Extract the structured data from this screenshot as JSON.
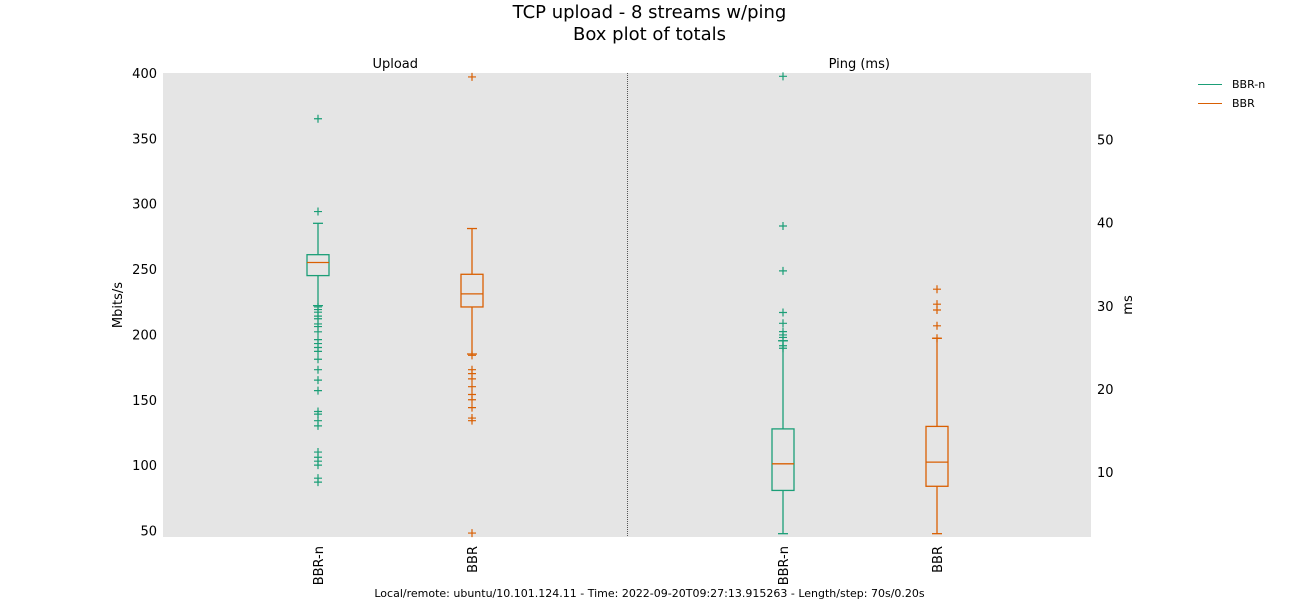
{
  "colors": {
    "series_a": "#1b9e77",
    "series_b": "#d95f02",
    "plot_bg": "#e5e5e5"
  },
  "chart_data": {
    "type": "box",
    "title": "TCP upload - 8 streams w/ping",
    "subtitle": "Box plot of totals",
    "legend": {
      "placement": "top-right",
      "entries": [
        "BBR-n",
        "BBR"
      ]
    },
    "footer": "Local/remote: ubuntu/10.101.124.11 - Time: 2022-09-20T09:27:13.915263 - Length/step: 70s/0.20s",
    "grid": false,
    "panels": [
      {
        "title": "Upload",
        "ylabel": "Mbits/s",
        "y_axis_side": "left",
        "ylim": [
          45,
          400
        ],
        "yticks": [
          50,
          100,
          150,
          200,
          250,
          300,
          350,
          400
        ],
        "categories": [
          "BBR-n",
          "BBR"
        ],
        "boxes": [
          {
            "name": "BBR-n",
            "color": "#1b9e77",
            "whisker_low": 222,
            "q1": 245,
            "median": 255,
            "q3": 261,
            "whisker_high": 285,
            "outliers": [
              365,
              294,
              221,
              219,
              217,
              214,
              212,
              208,
              206,
              202,
              196,
              193,
              190,
              187,
              181,
              173,
              165,
              157,
              141,
              139,
              134,
              130,
              110,
              106,
              103,
              100,
              90,
              87
            ]
          },
          {
            "name": "BBR",
            "color": "#d95f02",
            "whisker_low": 185,
            "q1": 221,
            "median": 231,
            "q3": 246,
            "whisker_high": 281,
            "outliers": [
              397,
              184,
              173,
              170,
              166,
              160,
              154,
              150,
              144,
              136,
              134,
              48
            ]
          }
        ]
      },
      {
        "title": "Ping (ms)",
        "ylabel": "ms",
        "y_axis_side": "right",
        "ylim": [
          2.2,
          58
        ],
        "yticks": [
          10,
          20,
          30,
          40,
          50
        ],
        "categories": [
          "BBR-n",
          "BBR"
        ],
        "boxes": [
          {
            "name": "BBR-n",
            "color": "#1b9e77",
            "whisker_low": 2.6,
            "q1": 7.8,
            "median": 11.0,
            "q3": 15.2,
            "whisker_high": 25.8,
            "outliers": [
              57.6,
              39.6,
              34.2,
              29.2,
              27.9,
              26.9,
              26.5,
              26.2,
              25.8,
              25.2,
              24.9
            ]
          },
          {
            "name": "BBR",
            "color": "#d95f02",
            "whisker_low": 2.6,
            "q1": 8.3,
            "median": 11.2,
            "q3": 15.5,
            "whisker_high": 26.1,
            "outliers": [
              32.0,
              30.2,
              29.5,
              27.6,
              26.1
            ]
          }
        ]
      }
    ]
  }
}
